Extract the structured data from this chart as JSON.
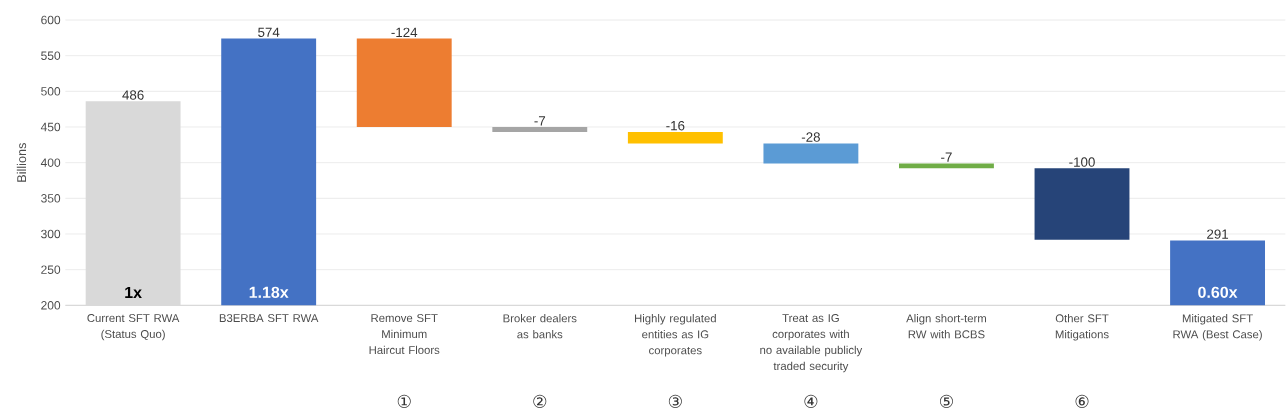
{
  "chart_data": {
    "type": "bar",
    "ylabel": "Billions",
    "categories": [
      "Current SFT RWA (Status Quo)",
      "B3ERBA SFT RWA",
      "Remove SFT Minimum Haircut Floors",
      "Broker dealers as banks",
      "Highly regulated entities as IG corporates",
      "Treat as IG corporates with no available publicly traded security",
      "Align short-term RW with BCBS",
      "Other SFT Mitigations",
      "Mitigated SFT RWA (Best Case)"
    ],
    "values": [
      486,
      574,
      -124,
      -7,
      -16,
      -28,
      -7,
      -100,
      291
    ],
    "base": [
      null,
      null,
      574,
      450,
      443,
      427,
      399,
      392,
      null
    ],
    "colors": [
      "#d9d9d9",
      "#4472c4",
      "#ed7d31",
      "#a5a5a5",
      "#ffc000",
      "#5b9bd5",
      "#70ad47",
      "#264478",
      "#4472c4"
    ],
    "data_labels": true,
    "ylim": [
      200,
      600
    ],
    "yticks": [
      200,
      250,
      300,
      350,
      400,
      450,
      500,
      550,
      600
    ],
    "grid": "y",
    "annotations": [
      "1x",
      "1.18x",
      "0.60x",
      "①",
      "②",
      "③",
      "④",
      "⑤",
      "⑥"
    ]
  }
}
